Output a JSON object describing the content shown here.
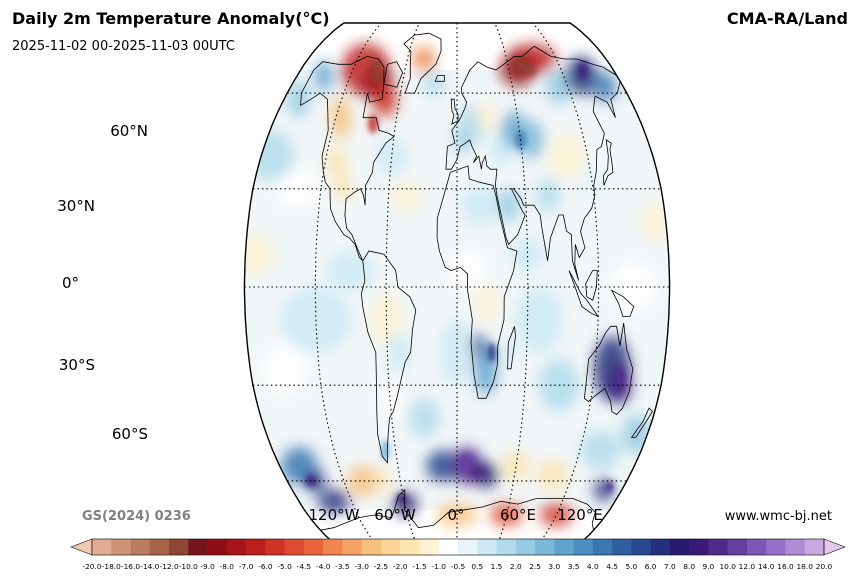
{
  "header": {
    "title": "Daily 2m Temperature Anomaly(°C)",
    "period": "2025-11-02 00-2025-11-03 00UTC",
    "source": "CMA-RA/Land"
  },
  "footer": {
    "map_code": "GS(2024) 0236",
    "website": "www.wmc-bj.net"
  },
  "map": {
    "projection": "Robinson",
    "graticule": "dotted",
    "lat_labels": [
      "60°N",
      "30°N",
      "0°",
      "30°S",
      "60°S"
    ],
    "lon_labels": [
      "120°W",
      "60°W",
      "0°",
      "60°E",
      "120°E"
    ],
    "anomaly_regions": [
      {
        "region": "Northern Canada / Arctic Canada",
        "anomaly": -8
      },
      {
        "region": "Siberia / Arctic Russia",
        "anomaly": -9
      },
      {
        "region": "Northeast Siberia",
        "anomaly": 6
      },
      {
        "region": "Central Asia / Kazakhstan",
        "anomaly": 4
      },
      {
        "region": "Western Europe",
        "anomaly": 2
      },
      {
        "region": "Alaska",
        "anomaly": 3
      },
      {
        "region": "Australia interior",
        "anomaly": 7
      },
      {
        "region": "Southern Africa",
        "anomaly": 4
      },
      {
        "region": "Southern Ocean near 0°",
        "anomaly": 9
      },
      {
        "region": "Antarctica",
        "anomaly": -5
      },
      {
        "region": "Southeast Pacific",
        "anomaly": 4
      }
    ]
  },
  "colorbar": {
    "ticks": [
      "-20.0",
      "-18.0",
      "-16.0",
      "-14.0",
      "-12.0",
      "-10.0",
      "-9.0",
      "-8.0",
      "-7.0",
      "-6.0",
      "-5.0",
      "-4.5",
      "-4.0",
      "-3.5",
      "-3.0",
      "-2.5",
      "-2.0",
      "-1.5",
      "-1.0",
      "-0.5",
      "0.5",
      "1.5",
      "2.0",
      "2.5",
      "3.0",
      "3.5",
      "4.0",
      "4.5",
      "5.0",
      "6.0",
      "7.0",
      "8.0",
      "9.0",
      "10.0",
      "12.0",
      "14.0",
      "16.0",
      "18.0",
      "20.0"
    ],
    "colors": [
      "#f2c8ae",
      "#e0ab90",
      "#cf9478",
      "#bc7c60",
      "#a8644a",
      "#8e4533",
      "#76141c",
      "#8f0d13",
      "#a81417",
      "#bc1f1d",
      "#cf3125",
      "#de4a30",
      "#e8643c",
      "#f08550",
      "#f5a363",
      "#f9bf7c",
      "#fcd596",
      "#fde5b0",
      "#fef3d2",
      "#ffffff",
      "#e8f6fb",
      "#cdeaf4",
      "#b2dcec",
      "#96cbe3",
      "#7bb8d8",
      "#62a3cc",
      "#4d8dbf",
      "#3b77b1",
      "#2d5fa1",
      "#27478f",
      "#23307d",
      "#271a6c",
      "#3a1a78",
      "#4f2a8c",
      "#653ea1",
      "#7d57b6",
      "#9670c8",
      "#b08bd6",
      "#cba8e3",
      "#e6c8f0"
    ]
  }
}
